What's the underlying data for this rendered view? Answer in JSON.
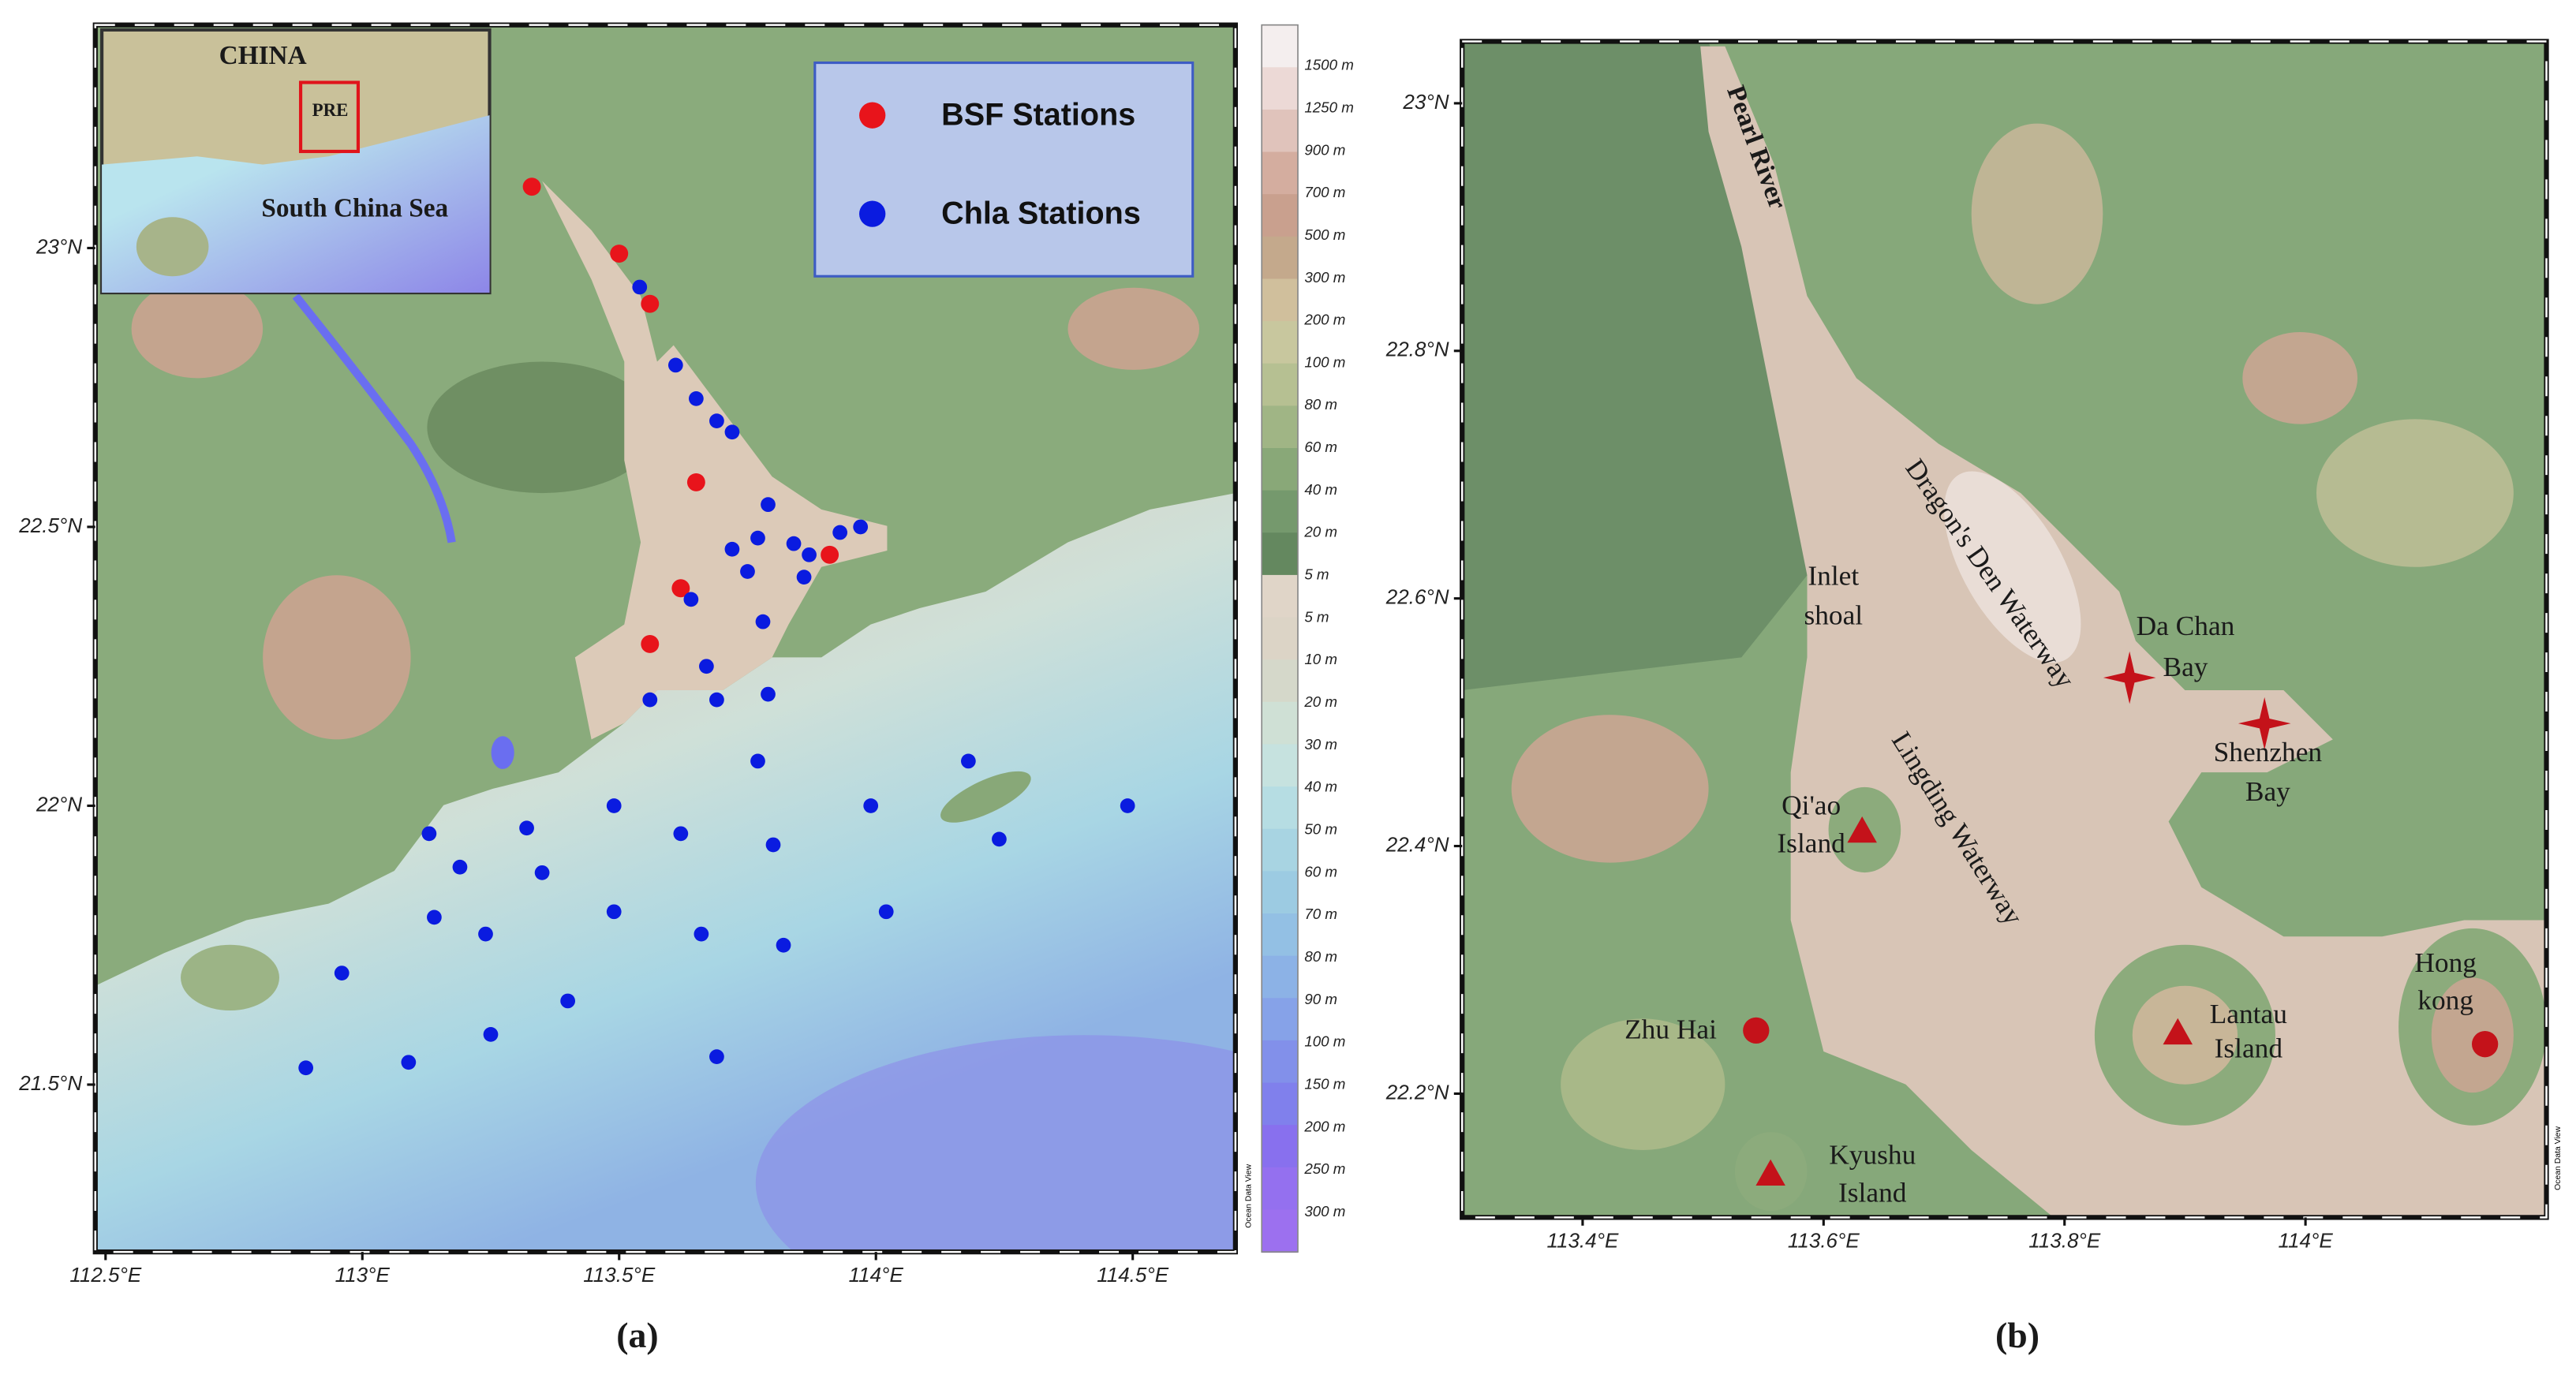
{
  "panel_a": {
    "label": "(a)",
    "xlim": [
      112.48,
      114.7
    ],
    "ylim": [
      21.2,
      23.4
    ],
    "xticks": [
      {
        "value": 112.5,
        "label": "112.5°E"
      },
      {
        "value": 113,
        "label": "113°E"
      },
      {
        "value": 113.5,
        "label": "113.5°E"
      },
      {
        "value": 114,
        "label": "114°E"
      },
      {
        "value": 114.5,
        "label": "114.5°E"
      }
    ],
    "yticks": [
      {
        "value": 21.5,
        "label": "21.5°N"
      },
      {
        "value": 22,
        "label": "22°N"
      },
      {
        "value": 22.5,
        "label": "22.5°N"
      },
      {
        "value": 23,
        "label": "23°N"
      }
    ],
    "inset": {
      "country": "CHINA",
      "region": "PRE",
      "sea": "South China Sea"
    },
    "series": [
      {
        "name": "BSF Stations",
        "color": "#e8141b",
        "lon": [
          113.33,
          113.5,
          113.56,
          113.65,
          113.62,
          113.56,
          113.91
        ],
        "lat": [
          23.11,
          22.99,
          22.9,
          22.58,
          22.39,
          22.29,
          22.45
        ]
      },
      {
        "name": "Chla Stations",
        "color": "#0a1be0",
        "lon": [
          113.54,
          113.61,
          113.65,
          113.69,
          113.72,
          113.79,
          113.72,
          113.77,
          113.84,
          113.87,
          113.93,
          113.97,
          113.75,
          113.86,
          113.64,
          113.78,
          113.67,
          113.69,
          113.79,
          113.56,
          113.77,
          114.18,
          113.49,
          113.99,
          113.62,
          113.8,
          113.13,
          113.19,
          113.32,
          113.35,
          113.49,
          114.02,
          113.14,
          113.24,
          113.66,
          113.82,
          112.96,
          113.4,
          114.49,
          114.24,
          113.25,
          113.09,
          112.89,
          113.69
        ],
        "lat": [
          22.93,
          22.79,
          22.73,
          22.69,
          22.67,
          22.54,
          22.46,
          22.48,
          22.47,
          22.45,
          22.49,
          22.5,
          22.42,
          22.41,
          22.37,
          22.33,
          22.25,
          22.19,
          22.2,
          22.19,
          22.08,
          22.08,
          22.0,
          22.0,
          21.95,
          21.93,
          21.95,
          21.89,
          21.96,
          21.88,
          21.81,
          21.81,
          21.8,
          21.77,
          21.77,
          21.75,
          21.7,
          21.65,
          22.0,
          21.94,
          21.59,
          21.54,
          21.53,
          21.55
        ]
      }
    ],
    "colorbar": {
      "labels": [
        "1500 m",
        "1250 m",
        "900 m",
        "700 m",
        "500 m",
        "300 m",
        "200 m",
        "100 m",
        "80 m",
        "60 m",
        "40 m",
        "20 m",
        "5 m",
        "5 m",
        "10 m",
        "20 m",
        "30 m",
        "40 m",
        "50 m",
        "60 m",
        "70 m",
        "80 m",
        "90 m",
        "100 m",
        "150 m",
        "200 m",
        "250 m",
        "300 m"
      ],
      "colors": [
        "#f4eeee",
        "#ecd9d6",
        "#e0c3bb",
        "#d4ad9f",
        "#c9a08e",
        "#c4a98c",
        "#d0bf9c",
        "#c8c79e",
        "#b6c092",
        "#a0b585",
        "#89a878",
        "#75996d",
        "#64885f",
        "#e0d5c8",
        "#dcd4c6",
        "#d5d8ca",
        "#cfe0d5",
        "#c6e2df",
        "#b6dde3",
        "#a8d4e2",
        "#9ccbe2",
        "#93c0e4",
        "#8cb2e6",
        "#86a2e8",
        "#8290ea",
        "#8080ec",
        "#8870ee",
        "#9470ef",
        "#9c70ef"
      ]
    },
    "credit": "Ocean Data View"
  },
  "panel_b": {
    "label": "(b)",
    "xlim": [
      113.3,
      114.2
    ],
    "ylim": [
      22.1,
      23.05
    ],
    "xticks": [
      {
        "value": 113.4,
        "label": "113.4°E"
      },
      {
        "value": 113.6,
        "label": "113.6°E"
      },
      {
        "value": 113.8,
        "label": "113.8°E"
      },
      {
        "value": 114,
        "label": "114°E"
      }
    ],
    "yticks": [
      {
        "value": 22.2,
        "label": "22.2°N"
      },
      {
        "value": 22.4,
        "label": "22.4°N"
      },
      {
        "value": 22.6,
        "label": "22.6°N"
      },
      {
        "value": 22.8,
        "label": "22.8°N"
      },
      {
        "value": 23,
        "label": "23°N"
      }
    ],
    "water_labels": [
      "Pearl River",
      "Dragon's Den Waterway",
      "Lingding Waterway"
    ],
    "shoal": [
      "Inlet",
      "shoal"
    ],
    "sites": [
      {
        "name": [
          "Da Chan",
          "Bay"
        ],
        "symbol": "star",
        "lon": 113.854,
        "lat": 22.536
      },
      {
        "name": [
          "Shenzhen",
          "Bay"
        ],
        "symbol": "star",
        "lon": 113.966,
        "lat": 22.499
      },
      {
        "name": [
          "Qi'ao",
          "Island"
        ],
        "symbol": "triangle",
        "lon": 113.632,
        "lat": 22.412
      },
      {
        "name": [
          "Lantau",
          "Island"
        ],
        "symbol": "triangle",
        "lon": 113.894,
        "lat": 22.249
      },
      {
        "name": [
          "Kyushu",
          "Island"
        ],
        "symbol": "triangle",
        "lon": 113.556,
        "lat": 22.135
      },
      {
        "name": [
          "Zhu Hai"
        ],
        "symbol": "circle",
        "lon": 113.544,
        "lat": 22.251
      },
      {
        "name": [
          "Hong",
          "kong"
        ],
        "symbol": "circle",
        "lon": 114.149,
        "lat": 22.24
      }
    ],
    "site_color": "#c4121a",
    "credit": "Ocean Data View"
  }
}
